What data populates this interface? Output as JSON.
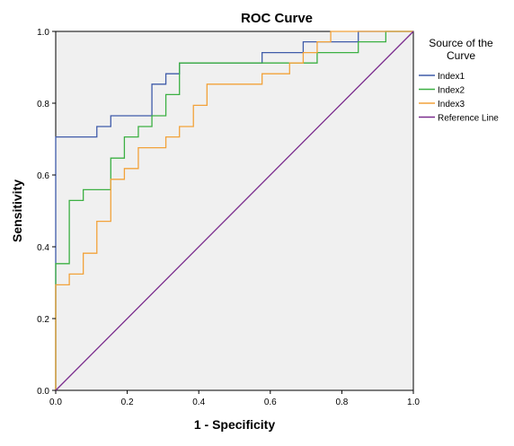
{
  "chart_data": {
    "type": "line",
    "title": "ROC Curve",
    "xlabel": "1 - Specificity",
    "ylabel": "Sensitivity",
    "xlim": [
      0,
      1
    ],
    "ylim": [
      0,
      1
    ],
    "xticks": [
      "0.0",
      "0.2",
      "0.4",
      "0.6",
      "0.8",
      "1.0"
    ],
    "yticks": [
      "0.0",
      "0.2",
      "0.4",
      "0.6",
      "0.8",
      "1.0"
    ],
    "grid": false,
    "legend": {
      "title": "Source of the Curve",
      "placement": "right"
    },
    "series": [
      {
        "name": "Index1",
        "color": "#3F5BA9",
        "points": [
          [
            0,
            0
          ],
          [
            0,
            0.706
          ],
          [
            0.115,
            0.706
          ],
          [
            0.115,
            0.735
          ],
          [
            0.154,
            0.735
          ],
          [
            0.154,
            0.765
          ],
          [
            0.269,
            0.765
          ],
          [
            0.269,
            0.853
          ],
          [
            0.308,
            0.853
          ],
          [
            0.308,
            0.882
          ],
          [
            0.346,
            0.882
          ],
          [
            0.346,
            0.912
          ],
          [
            0.577,
            0.912
          ],
          [
            0.577,
            0.941
          ],
          [
            0.692,
            0.941
          ],
          [
            0.692,
            0.971
          ],
          [
            0.846,
            0.971
          ],
          [
            0.846,
            1.0
          ],
          [
            1.0,
            1.0
          ]
        ]
      },
      {
        "name": "Index2",
        "color": "#3CB043",
        "points": [
          [
            0,
            0
          ],
          [
            0,
            0.353
          ],
          [
            0.038,
            0.353
          ],
          [
            0.038,
            0.529
          ],
          [
            0.077,
            0.529
          ],
          [
            0.077,
            0.559
          ],
          [
            0.154,
            0.559
          ],
          [
            0.154,
            0.647
          ],
          [
            0.192,
            0.647
          ],
          [
            0.192,
            0.706
          ],
          [
            0.231,
            0.706
          ],
          [
            0.231,
            0.735
          ],
          [
            0.269,
            0.735
          ],
          [
            0.269,
            0.765
          ],
          [
            0.308,
            0.765
          ],
          [
            0.308,
            0.824
          ],
          [
            0.346,
            0.824
          ],
          [
            0.346,
            0.912
          ],
          [
            0.731,
            0.912
          ],
          [
            0.731,
            0.941
          ],
          [
            0.846,
            0.941
          ],
          [
            0.846,
            0.971
          ],
          [
            0.923,
            0.971
          ],
          [
            0.923,
            1.0
          ],
          [
            1.0,
            1.0
          ]
        ]
      },
      {
        "name": "Index3",
        "color": "#F2A23A",
        "points": [
          [
            0,
            0
          ],
          [
            0,
            0.294
          ],
          [
            0.038,
            0.294
          ],
          [
            0.038,
            0.324
          ],
          [
            0.077,
            0.324
          ],
          [
            0.077,
            0.382
          ],
          [
            0.115,
            0.382
          ],
          [
            0.115,
            0.471
          ],
          [
            0.154,
            0.471
          ],
          [
            0.154,
            0.588
          ],
          [
            0.192,
            0.588
          ],
          [
            0.192,
            0.618
          ],
          [
            0.231,
            0.618
          ],
          [
            0.231,
            0.676
          ],
          [
            0.308,
            0.676
          ],
          [
            0.308,
            0.706
          ],
          [
            0.346,
            0.706
          ],
          [
            0.346,
            0.735
          ],
          [
            0.385,
            0.735
          ],
          [
            0.385,
            0.794
          ],
          [
            0.423,
            0.794
          ],
          [
            0.423,
            0.853
          ],
          [
            0.577,
            0.853
          ],
          [
            0.577,
            0.882
          ],
          [
            0.654,
            0.882
          ],
          [
            0.654,
            0.912
          ],
          [
            0.692,
            0.912
          ],
          [
            0.692,
            0.941
          ],
          [
            0.731,
            0.941
          ],
          [
            0.731,
            0.971
          ],
          [
            0.769,
            0.971
          ],
          [
            0.769,
            1.0
          ],
          [
            1.0,
            1.0
          ]
        ]
      },
      {
        "name": "Reference Line",
        "color": "#7B2D8E",
        "points": [
          [
            0,
            0
          ],
          [
            1,
            1
          ]
        ]
      }
    ]
  },
  "colors": {
    "plot_background": "#F0F0F0",
    "axis": "#000000"
  }
}
